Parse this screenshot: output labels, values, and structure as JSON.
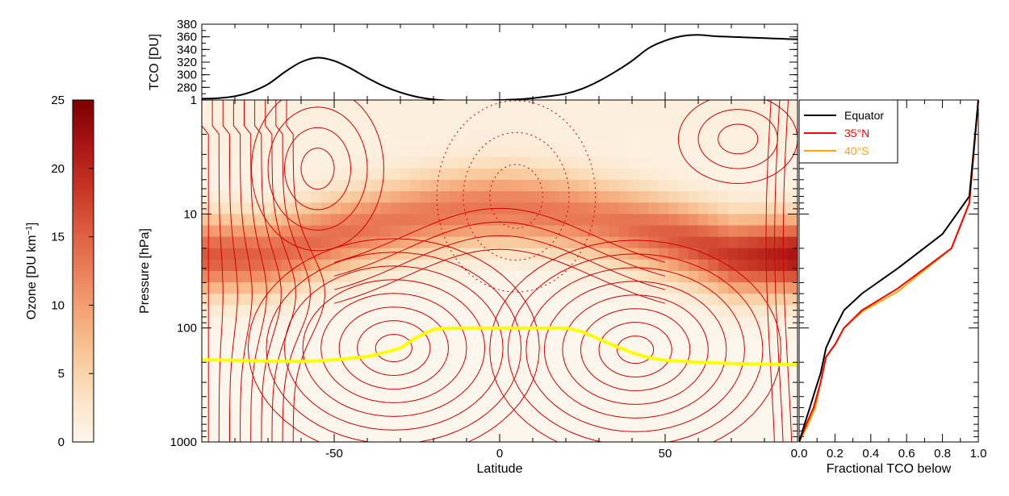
{
  "colorbar": {
    "label": "Ozone [DU km",
    "label_sup": "−1",
    "label_end": "]",
    "ticks": [
      "0",
      "5",
      "10",
      "15",
      "20",
      "25"
    ],
    "range": [
      0,
      25
    ],
    "colormap": [
      "#fdf6ec",
      "#fbe3c5",
      "#f8c89a",
      "#f4a577",
      "#eb7f5a",
      "#dc5a3f",
      "#c43323",
      "#a81414",
      "#7a0000"
    ]
  },
  "chart_data": [
    {
      "type": "line",
      "title": "",
      "ylabel": "TCO [DU]",
      "xlim": [
        -90,
        90
      ],
      "ylim": [
        260,
        380
      ],
      "yticks": [
        "280",
        "300",
        "320",
        "340",
        "360",
        "380"
      ],
      "x": [
        -90,
        -85,
        -80,
        -75,
        -70,
        -65,
        -60,
        -55,
        -50,
        -45,
        -40,
        -35,
        -30,
        -25,
        -20,
        -15,
        -10,
        -5,
        0,
        5,
        10,
        15,
        20,
        25,
        30,
        35,
        40,
        45,
        50,
        55,
        60,
        65,
        70,
        75,
        80,
        85,
        90
      ],
      "values": [
        262,
        263,
        266,
        273,
        285,
        304,
        320,
        327,
        322,
        310,
        295,
        282,
        272,
        265,
        261,
        259,
        258,
        259,
        260,
        261,
        263,
        266,
        270,
        278,
        290,
        305,
        322,
        342,
        354,
        361,
        363,
        361,
        360,
        359,
        358,
        357,
        356
      ],
      "color": "#000000"
    },
    {
      "type": "heatmap",
      "xlabel": "Latitude",
      "ylabel": "Pressure [hPa]",
      "xlim": [
        -90,
        90
      ],
      "ylim": [
        1000,
        1
      ],
      "yscale": "log",
      "xticks": [
        "-50",
        "0",
        "50"
      ],
      "yticks": [
        "1",
        "10",
        "100",
        "1000"
      ],
      "contour_color": "#d40000",
      "tropopause_color": "#ffff00",
      "tropopause": {
        "x": [
          -90,
          -80,
          -70,
          -60,
          -50,
          -40,
          -35,
          -30,
          -25,
          -20,
          -15,
          -10,
          0,
          10,
          20,
          25,
          30,
          35,
          40,
          45,
          50,
          60,
          70,
          80,
          90
        ],
        "p": [
          190,
          192,
          195,
          197,
          190,
          178,
          165,
          150,
          120,
          103,
          100,
          100,
          100,
          100,
          100,
          108,
          125,
          145,
          165,
          182,
          192,
          200,
          205,
          208,
          210
        ]
      }
    },
    {
      "type": "line",
      "xlabel": "Fractional TCO below",
      "xlim": [
        0.0,
        1.0
      ],
      "ylim": [
        1000,
        1
      ],
      "xticks": [
        "0.0",
        "0.2",
        "0.4",
        "0.6",
        "0.8",
        "1.0"
      ],
      "legend_position": "top-left",
      "series": [
        {
          "name": "Equator",
          "color": "#000000",
          "x": [
            0.0,
            0.03,
            0.06,
            0.09,
            0.12,
            0.15,
            0.2,
            0.25,
            0.35,
            0.55,
            0.8,
            0.95,
            1.0
          ],
          "p": [
            1000,
            700,
            500,
            350,
            250,
            150,
            100,
            70,
            50,
            30,
            15,
            7,
            1
          ]
        },
        {
          "name": "35°N",
          "color": "#ff0000",
          "x": [
            0.0,
            0.04,
            0.08,
            0.12,
            0.15,
            0.2,
            0.25,
            0.35,
            0.55,
            0.85,
            0.95,
            1.0
          ],
          "p": [
            1000,
            700,
            500,
            300,
            180,
            140,
            100,
            70,
            45,
            20,
            8,
            1
          ]
        },
        {
          "name": "40°S",
          "color": "#ffa500",
          "x": [
            0.0,
            0.05,
            0.09,
            0.12,
            0.15,
            0.2,
            0.25,
            0.35,
            0.55,
            0.85,
            0.95,
            1.0
          ],
          "p": [
            1000,
            700,
            500,
            300,
            180,
            140,
            100,
            72,
            48,
            20,
            8,
            1
          ]
        }
      ]
    }
  ]
}
